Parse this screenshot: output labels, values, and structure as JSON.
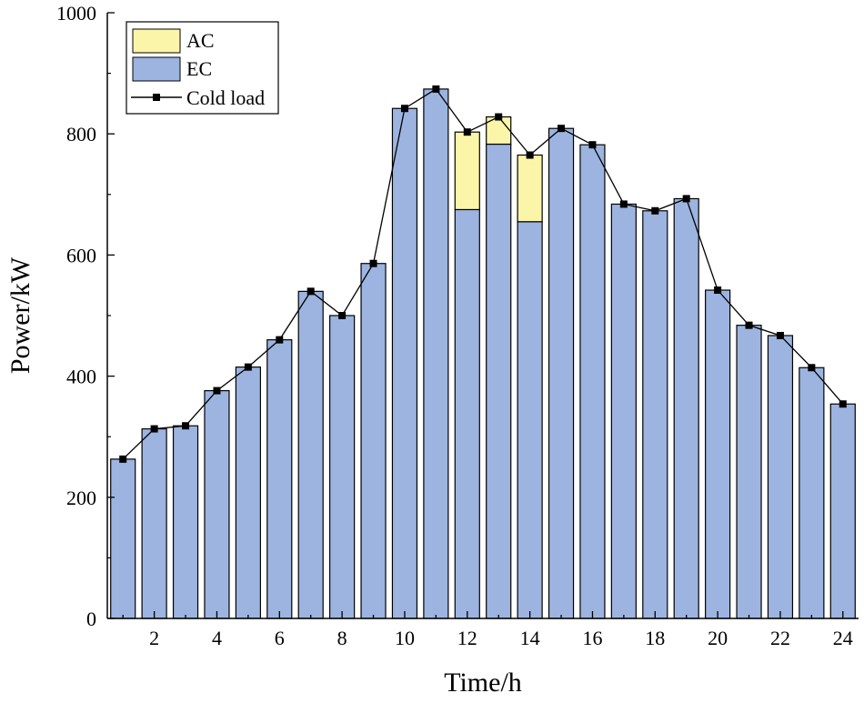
{
  "chart_data": {
    "type": "bar",
    "stacked": true,
    "xlabel": "Time/h",
    "ylabel": "Power/kW",
    "ylim": [
      0,
      1000
    ],
    "xlim": [
      0.5,
      24.5
    ],
    "yticks": [
      0,
      200,
      400,
      600,
      800,
      1000
    ],
    "xticks": [
      2,
      4,
      6,
      8,
      10,
      12,
      14,
      16,
      18,
      20,
      22,
      24
    ],
    "categories": [
      1,
      2,
      3,
      4,
      5,
      6,
      7,
      8,
      9,
      10,
      11,
      12,
      13,
      14,
      15,
      16,
      17,
      18,
      19,
      20,
      21,
      22,
      23,
      24
    ],
    "series": [
      {
        "name": "EC",
        "kind": "bar",
        "color": "#9db4e0",
        "values": [
          263,
          313,
          318,
          376,
          415,
          460,
          540,
          500,
          586,
          842,
          874,
          675,
          783,
          655,
          809,
          782,
          684,
          673,
          693,
          542,
          484,
          467,
          414,
          354
        ]
      },
      {
        "name": "AC",
        "kind": "bar",
        "color": "#fbf5a9",
        "values": [
          0,
          0,
          0,
          0,
          0,
          0,
          0,
          0,
          0,
          0,
          0,
          128,
          45,
          110,
          0,
          0,
          0,
          0,
          0,
          0,
          0,
          0,
          0,
          0
        ]
      },
      {
        "name": "Cold load",
        "kind": "line",
        "color": "#000000",
        "marker": "square",
        "values": [
          263,
          313,
          318,
          376,
          415,
          460,
          540,
          500,
          586,
          842,
          874,
          803,
          828,
          765,
          809,
          782,
          684,
          673,
          693,
          542,
          484,
          467,
          414,
          354
        ]
      }
    ],
    "legend": {
      "position": "top-left",
      "entries": [
        "AC",
        "EC",
        "Cold load"
      ]
    },
    "grid": false
  }
}
